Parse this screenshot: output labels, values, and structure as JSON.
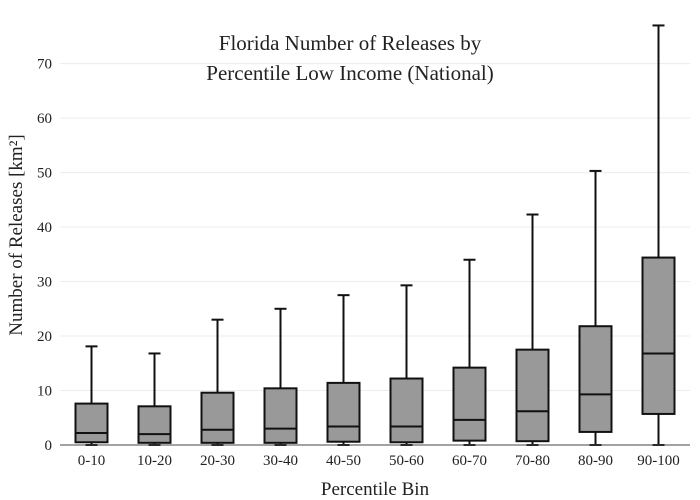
{
  "chart_data": {
    "type": "box",
    "title": [
      "Florida Number of Releases by",
      "Percentile Low Income (National)"
    ],
    "xlabel": "Percentile Bin",
    "ylabel": "Number of Releases  [km²]",
    "ylim": [
      0,
      78
    ],
    "yticks": [
      0,
      10,
      20,
      30,
      40,
      50,
      60,
      70
    ],
    "grid": true,
    "box_color": "#999999",
    "line_color": "#111111",
    "grid_color": "#ececec",
    "categories": [
      "0-10",
      "10-20",
      "20-30",
      "30-40",
      "40-50",
      "50-60",
      "60-70",
      "70-80",
      "80-90",
      "90-100"
    ],
    "boxes": [
      {
        "min": 0,
        "q1": 0.5,
        "median": 2.2,
        "q3": 7.6,
        "max": 18.1
      },
      {
        "min": 0,
        "q1": 0.4,
        "median": 2.0,
        "q3": 7.1,
        "max": 16.8
      },
      {
        "min": 0,
        "q1": 0.4,
        "median": 2.8,
        "q3": 9.6,
        "max": 23.0
      },
      {
        "min": 0,
        "q1": 0.4,
        "median": 3.0,
        "q3": 10.4,
        "max": 25.0
      },
      {
        "min": 0,
        "q1": 0.6,
        "median": 3.4,
        "q3": 11.4,
        "max": 27.5
      },
      {
        "min": 0,
        "q1": 0.5,
        "median": 3.4,
        "q3": 12.2,
        "max": 29.3
      },
      {
        "min": 0,
        "q1": 0.8,
        "median": 4.6,
        "q3": 14.2,
        "max": 34.0
      },
      {
        "min": 0,
        "q1": 0.7,
        "median": 6.2,
        "q3": 17.5,
        "max": 42.3
      },
      {
        "min": 0,
        "q1": 2.4,
        "median": 9.3,
        "q3": 21.8,
        "max": 50.3
      },
      {
        "min": 0,
        "q1": 5.7,
        "median": 16.8,
        "q3": 34.4,
        "max": 77.0
      }
    ]
  }
}
